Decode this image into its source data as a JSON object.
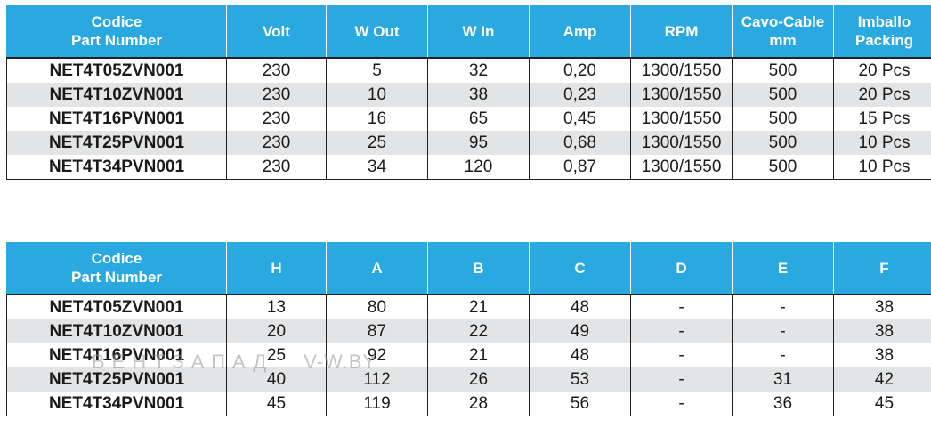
{
  "specs_table": {
    "headers": [
      {
        "line1": "Codice",
        "line2": "Part Number"
      },
      {
        "line1": "Volt",
        "line2": ""
      },
      {
        "line1": "W Out",
        "line2": ""
      },
      {
        "line1": "W In",
        "line2": ""
      },
      {
        "line1": "Amp",
        "line2": ""
      },
      {
        "line1": "RPM",
        "line2": ""
      },
      {
        "line1": "Cavo-Cable",
        "line2": "mm"
      },
      {
        "line1": "Imballo",
        "line2": "Packing"
      }
    ],
    "rows": [
      [
        "NET4T05ZVN001",
        "230",
        "5",
        "32",
        "0,20",
        "1300/1550",
        "500",
        "20 Pcs"
      ],
      [
        "NET4T10ZVN001",
        "230",
        "10",
        "38",
        "0,23",
        "1300/1550",
        "500",
        "20 Pcs"
      ],
      [
        "NET4T16PVN001",
        "230",
        "16",
        "65",
        "0,45",
        "1300/1550",
        "500",
        "15 Pcs"
      ],
      [
        "NET4T25PVN001",
        "230",
        "25",
        "95",
        "0,68",
        "1300/1550",
        "500",
        "10 Pcs"
      ],
      [
        "NET4T34PVN001",
        "230",
        "34",
        "120",
        "0,87",
        "1300/1550",
        "500",
        "10 Pcs"
      ]
    ]
  },
  "dims_table": {
    "headers": [
      {
        "line1": "Codice",
        "line2": "Part Number"
      },
      {
        "line1": "H",
        "line2": ""
      },
      {
        "line1": "A",
        "line2": ""
      },
      {
        "line1": "B",
        "line2": ""
      },
      {
        "line1": "C",
        "line2": ""
      },
      {
        "line1": "D",
        "line2": ""
      },
      {
        "line1": "E",
        "line2": ""
      },
      {
        "line1": "F",
        "line2": ""
      }
    ],
    "rows": [
      [
        "NET4T05ZVN001",
        "13",
        "80",
        "21",
        "48",
        "-",
        "-",
        "38"
      ],
      [
        "NET4T10ZVN001",
        "20",
        "87",
        "22",
        "49",
        "-",
        "-",
        "38"
      ],
      [
        "NET4T16PVN001",
        "25",
        "92",
        "21",
        "48",
        "-",
        "-",
        "38"
      ],
      [
        "NET4T25PVN001",
        "40",
        "112",
        "26",
        "53",
        "-",
        "31",
        "42"
      ],
      [
        "NET4T34PVN001",
        "45",
        "119",
        "28",
        "56",
        "-",
        "36",
        "45"
      ]
    ]
  },
  "watermark": {
    "brand": "ВЕНТЗАПАД",
    "url": "V-W.BY"
  },
  "colors": {
    "header_bg": "#2aa8e0",
    "header_text": "#ffffff",
    "stripe": "#e3e4e5",
    "grid": "#1f1f1f"
  }
}
